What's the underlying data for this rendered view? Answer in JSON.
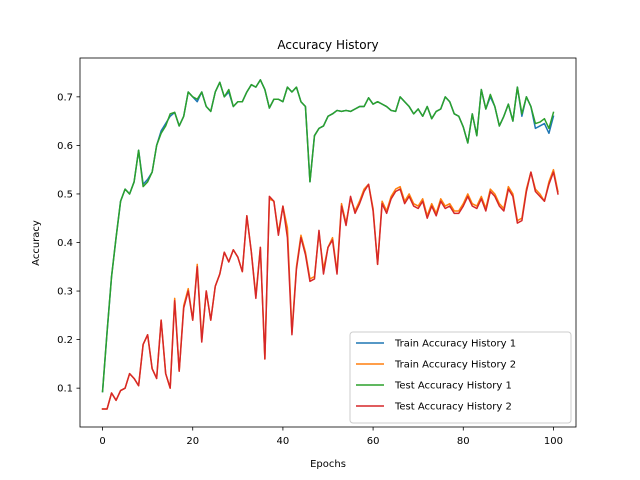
{
  "chart_data": {
    "type": "line",
    "title": "Accuracy History",
    "xlabel": "Epochs",
    "ylabel": "Accuracy",
    "xlim": [
      -5,
      105
    ],
    "ylim": [
      0.02,
      0.78
    ],
    "xticks": [
      0,
      20,
      40,
      60,
      80,
      100
    ],
    "yticks": [
      0.1,
      0.2,
      0.3,
      0.4,
      0.5,
      0.6,
      0.7
    ],
    "ytick_labels": [
      "0.1",
      "0.2",
      "0.3",
      "0.4",
      "0.5",
      "0.6",
      "0.7"
    ],
    "grid": false,
    "legend_position": "lower-right",
    "series": [
      {
        "name": "Train Accuracy History 1",
        "color": "#1f77b4",
        "values": [
          0.093,
          0.215,
          0.33,
          0.41,
          0.485,
          0.51,
          0.5,
          0.525,
          0.59,
          0.52,
          0.53,
          0.545,
          0.6,
          0.63,
          0.645,
          0.66,
          0.668,
          0.64,
          0.66,
          0.71,
          0.7,
          0.69,
          0.71,
          0.68,
          0.67,
          0.71,
          0.73,
          0.7,
          0.71,
          0.68,
          0.69,
          0.69,
          0.71,
          0.725,
          0.72,
          0.735,
          0.715,
          0.677,
          0.695,
          0.695,
          0.69,
          0.72,
          0.71,
          0.72,
          0.69,
          0.68,
          0.525,
          0.62,
          0.635,
          0.64,
          0.66,
          0.665,
          0.672,
          0.67,
          0.672,
          0.67,
          0.675,
          0.68,
          0.68,
          0.698,
          0.685,
          0.69,
          0.685,
          0.68,
          0.672,
          0.67,
          0.7,
          0.69,
          0.68,
          0.665,
          0.675,
          0.66,
          0.68,
          0.655,
          0.67,
          0.675,
          0.7,
          0.69,
          0.665,
          0.66,
          0.638,
          0.605,
          0.665,
          0.62,
          0.715,
          0.675,
          0.7,
          0.68,
          0.64,
          0.66,
          0.685,
          0.65,
          0.72,
          0.66,
          0.7,
          0.68,
          0.635,
          0.64,
          0.645,
          0.625,
          0.66
        ]
      },
      {
        "name": "Train Accuracy History 2",
        "color": "#ff7f0e",
        "values": [
          0.057,
          0.057,
          0.09,
          0.075,
          0.095,
          0.1,
          0.13,
          0.12,
          0.105,
          0.19,
          0.21,
          0.14,
          0.12,
          0.24,
          0.13,
          0.1,
          0.285,
          0.135,
          0.27,
          0.305,
          0.24,
          0.355,
          0.2,
          0.3,
          0.24,
          0.31,
          0.335,
          0.38,
          0.36,
          0.385,
          0.37,
          0.34,
          0.455,
          0.38,
          0.29,
          0.39,
          0.16,
          0.49,
          0.485,
          0.42,
          0.475,
          0.43,
          0.215,
          0.35,
          0.415,
          0.38,
          0.325,
          0.33,
          0.42,
          0.345,
          0.39,
          0.41,
          0.34,
          0.48,
          0.44,
          0.49,
          0.465,
          0.485,
          0.51,
          0.52,
          0.47,
          0.355,
          0.485,
          0.465,
          0.495,
          0.51,
          0.515,
          0.485,
          0.5,
          0.48,
          0.475,
          0.49,
          0.455,
          0.48,
          0.46,
          0.49,
          0.475,
          0.48,
          0.465,
          0.465,
          0.48,
          0.5,
          0.48,
          0.475,
          0.495,
          0.47,
          0.51,
          0.5,
          0.48,
          0.47,
          0.515,
          0.5,
          0.445,
          0.45,
          0.51,
          0.545,
          0.51,
          0.5,
          0.485,
          0.525,
          0.55,
          0.505
        ]
      },
      {
        "name": "Test Accuracy History 1",
        "color": "#2ca02c",
        "values": [
          0.093,
          0.215,
          0.33,
          0.41,
          0.485,
          0.51,
          0.5,
          0.525,
          0.59,
          0.515,
          0.525,
          0.545,
          0.6,
          0.625,
          0.64,
          0.665,
          0.668,
          0.64,
          0.66,
          0.71,
          0.7,
          0.695,
          0.71,
          0.68,
          0.67,
          0.71,
          0.73,
          0.7,
          0.715,
          0.68,
          0.69,
          0.69,
          0.71,
          0.725,
          0.72,
          0.735,
          0.715,
          0.677,
          0.695,
          0.695,
          0.69,
          0.72,
          0.71,
          0.72,
          0.69,
          0.68,
          0.525,
          0.62,
          0.635,
          0.64,
          0.66,
          0.665,
          0.672,
          0.67,
          0.672,
          0.67,
          0.675,
          0.68,
          0.68,
          0.698,
          0.685,
          0.69,
          0.685,
          0.68,
          0.672,
          0.67,
          0.7,
          0.69,
          0.68,
          0.665,
          0.675,
          0.66,
          0.68,
          0.655,
          0.67,
          0.675,
          0.7,
          0.69,
          0.665,
          0.66,
          0.638,
          0.605,
          0.665,
          0.62,
          0.715,
          0.675,
          0.705,
          0.68,
          0.64,
          0.66,
          0.685,
          0.65,
          0.72,
          0.665,
          0.7,
          0.68,
          0.645,
          0.648,
          0.655,
          0.635,
          0.668
        ]
      },
      {
        "name": "Test Accuracy History 2",
        "color": "#d62728",
        "values": [
          0.057,
          0.057,
          0.09,
          0.075,
          0.095,
          0.1,
          0.13,
          0.12,
          0.105,
          0.19,
          0.21,
          0.14,
          0.12,
          0.24,
          0.13,
          0.1,
          0.28,
          0.135,
          0.265,
          0.3,
          0.24,
          0.35,
          0.195,
          0.3,
          0.24,
          0.31,
          0.335,
          0.38,
          0.36,
          0.385,
          0.37,
          0.34,
          0.455,
          0.38,
          0.285,
          0.39,
          0.16,
          0.495,
          0.485,
          0.415,
          0.475,
          0.41,
          0.21,
          0.345,
          0.41,
          0.375,
          0.32,
          0.325,
          0.425,
          0.335,
          0.39,
          0.405,
          0.335,
          0.475,
          0.435,
          0.495,
          0.46,
          0.48,
          0.505,
          0.52,
          0.465,
          0.355,
          0.48,
          0.46,
          0.49,
          0.505,
          0.51,
          0.48,
          0.495,
          0.475,
          0.47,
          0.485,
          0.45,
          0.475,
          0.455,
          0.485,
          0.47,
          0.475,
          0.46,
          0.46,
          0.475,
          0.495,
          0.475,
          0.47,
          0.49,
          0.465,
          0.505,
          0.495,
          0.475,
          0.465,
          0.51,
          0.495,
          0.44,
          0.445,
          0.505,
          0.545,
          0.505,
          0.495,
          0.485,
          0.52,
          0.545,
          0.5
        ]
      }
    ]
  }
}
